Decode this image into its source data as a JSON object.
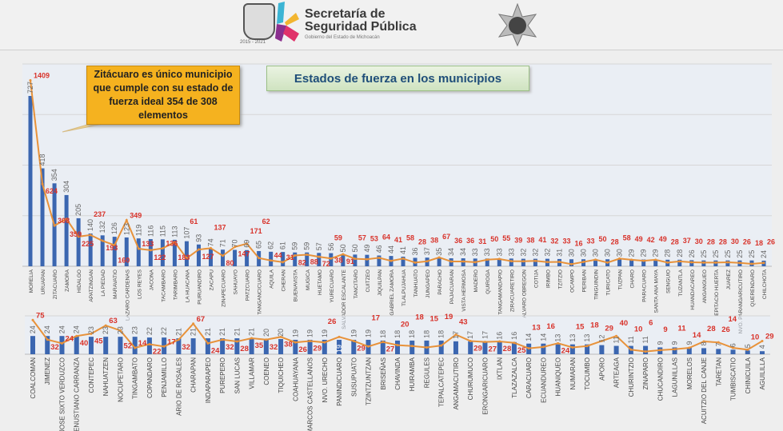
{
  "header": {
    "org_line1": "Secretaría de",
    "org_line2": "Seguridad Pública",
    "org_line3": "Gobierno del Estado de Michoacán",
    "seal_years": "2015 - 2021"
  },
  "colors": {
    "bar": "#3b66b0",
    "line": "#e8923a",
    "ideal_label": "#d8322a",
    "bar_label": "#666666"
  },
  "chart_data": [
    {
      "type": "bar+line",
      "title": "Estados de fuerza en los municipios",
      "annotation": "Zitácuaro es único municipio que cumple con su estado de fuerza ideal 354 de 308 elementos",
      "categories": [
        "MORELIA",
        "URUAPAN",
        "ZITACUARO",
        "ZAMORA",
        "HIDALGO",
        "APATZINGAN",
        "LA PIEDAD",
        "MARAVATIO",
        "LAZARO CARDENAS",
        "LOS REYES",
        "JACONA",
        "TACAMBARO",
        "TARIMBARO",
        "LA HUACANA",
        "PURUANDIRO",
        "ZACAPU",
        "ZINAPECUARO",
        "SAHUAYO",
        "PATZCUARO",
        "TANGANCICUARO",
        "AQUILA",
        "CHERAN",
        "BUENAVISTA",
        "MUGICA",
        "HUETAMO",
        "YURECUARO",
        "SALVADOR ESCALANTE",
        "TANCITARO",
        "CUITZEO",
        "JIQUILPAN",
        "GABRIEL ZAMORA",
        "TLALPUJAHUA",
        "TANHUATO",
        "JUNGAPEO",
        "PARACHO",
        "PAJACUARAN",
        "VISTA HERMOSA",
        "MADERO",
        "QUIROGA",
        "TANGAMANDAPIO",
        "ZIRACUARETIRO",
        "ALVARO OBREGON",
        "COTIJA",
        "IRIMBO",
        "TZITZIO",
        "OCAMPO",
        "PERIBAN",
        "TINGUINDIN",
        "TURICATO",
        "TUZPAN",
        "CHARO",
        "PARACUARO",
        "SANTA ANA MAYA",
        "SENGUIO",
        "TUZANTLA",
        "HUANDACAREO",
        "ANGANGUEO",
        "EPITACIO HUERTA",
        "JUAREZ",
        "NVO. PARANGARICUTIRO",
        "QUERENDARO",
        "CHILCHOTA"
      ],
      "series": [
        {
          "type": "bar",
          "values": [
            727,
            418,
            354,
            304,
            205,
            140,
            132,
            126,
            123,
            119,
            116,
            115,
            113,
            107,
            93,
            74,
            71,
            70,
            69,
            65,
            62,
            61,
            59,
            59,
            57,
            56,
            50,
            50,
            49,
            46,
            44,
            41,
            36,
            37,
            35,
            34,
            34,
            33,
            33,
            33,
            33,
            32,
            32,
            32,
            31,
            30,
            30,
            30,
            30,
            30,
            29,
            29,
            29,
            28,
            28,
            26,
            25,
            25,
            25,
            25,
            25,
            24
          ]
        },
        {
          "type": "line",
          "values": [
            1409,
            624,
            308,
            359,
            225,
            237,
            193,
            160,
            349,
            133,
            122,
            136,
            183,
            61,
            127,
            137,
            80,
            147,
            171,
            62,
            44,
            31,
            82,
            88,
            72,
            59,
            91,
            57,
            53,
            64,
            41,
            58,
            28,
            38,
            67,
            36,
            36,
            31,
            50,
            55,
            39,
            38,
            41,
            32,
            33,
            16,
            33,
            50,
            28,
            58,
            49,
            42,
            49,
            28,
            37,
            30,
            28,
            28,
            30,
            26,
            18,
            26
          ]
        }
      ]
    },
    {
      "type": "bar+line",
      "categories": [
        "COALCOMAN",
        "JIMENEZ",
        "JOSE SIXTO VERDUZCO",
        "VENUSTIANO CARRANZA",
        "CONTEPEC",
        "NAHUATZEN",
        "NOCUPETARO",
        "TINGAMBATO",
        "COPANDARO",
        "PENJAMILLO",
        "ARIO DE ROSALES",
        "CHARAPAN",
        "INDAPARAPEO",
        "PUREPERO",
        "SAN LUCAS",
        "VILLAMAR",
        "COENEO",
        "TIQUICHEO",
        "COAHUAYANA",
        "MARCOS CASTELLANOS",
        "NVO. URECHO",
        "PANINDICUARO",
        "SUSUPUATO",
        "TZINTZUNTZAN",
        "BRISEÑAS",
        "CHAVINDA",
        "HUIRAMBA",
        "REGULES",
        "TEPALCATEPEC",
        "ANGAMACUTIRO",
        "CHURUMUCO",
        "ERONGARICUARO",
        "IXTLAN",
        "TLAZAZALCA",
        "CARACUARO",
        "ECUANDUREO",
        "HUANIQUEO",
        "NUMARAN",
        "TOCUMBO",
        "APORO",
        "ARTEAGA",
        "CHURINTZIO",
        "ZINAPARO",
        "CHUCANDIRO",
        "LAGUNILLAS",
        "MORELOS",
        "ACUITZIO DEL CANJE",
        "TARETAN",
        "TUMBISCATIO",
        "CHINICUILA",
        "AGUILILLA"
      ],
      "series": [
        {
          "type": "bar",
          "values": [
            24,
            24,
            24,
            24,
            23,
            23,
            23,
            23,
            22,
            22,
            21,
            21,
            21,
            21,
            21,
            21,
            20,
            20,
            19,
            19,
            19,
            19,
            19,
            19,
            18,
            18,
            18,
            18,
            18,
            17,
            17,
            17,
            16,
            16,
            14,
            14,
            13,
            13,
            13,
            12,
            11,
            11,
            11,
            9,
            9,
            9,
            8,
            7,
            6,
            5,
            4
          ]
        },
        {
          "type": "line",
          "values": [
            75,
            32,
            24,
            40,
            45,
            63,
            52,
            14,
            22,
            17,
            32,
            67,
            24,
            32,
            28,
            35,
            32,
            38,
            26,
            29,
            26,
            38,
            29,
            17,
            27,
            20,
            18,
            15,
            19,
            43,
            29,
            27,
            28,
            25,
            13,
            16,
            24,
            15,
            18,
            29,
            40,
            10,
            6,
            9,
            11,
            14,
            28,
            26,
            14,
            10,
            29
          ]
        }
      ]
    }
  ]
}
